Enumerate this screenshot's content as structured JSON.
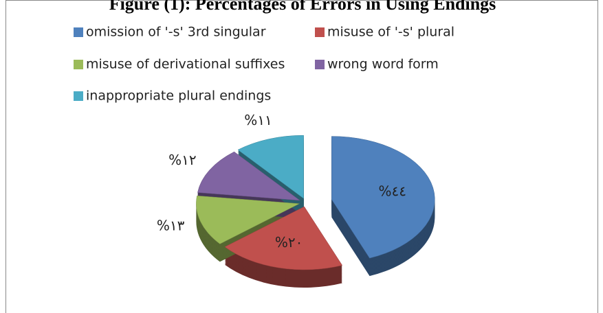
{
  "chart_data": {
    "type": "pie",
    "title": "Figure (1): Percentages of Errors in Using Endings",
    "categories": [
      "omission of '-s' 3rd singular",
      "misuse of '-s' plural",
      "misuse of derivational suffixes",
      "wrong word form",
      "inappropriate plural endings"
    ],
    "values": [
      44,
      20,
      13,
      12,
      11
    ],
    "value_labels": [
      "%٤٤",
      "%٢٠",
      "%١٣",
      "%١٢",
      "%١١"
    ],
    "colors": [
      "#4f81bd",
      "#c0504d",
      "#9bbb59",
      "#8064a2",
      "#4bacc6"
    ],
    "legend": "top"
  }
}
